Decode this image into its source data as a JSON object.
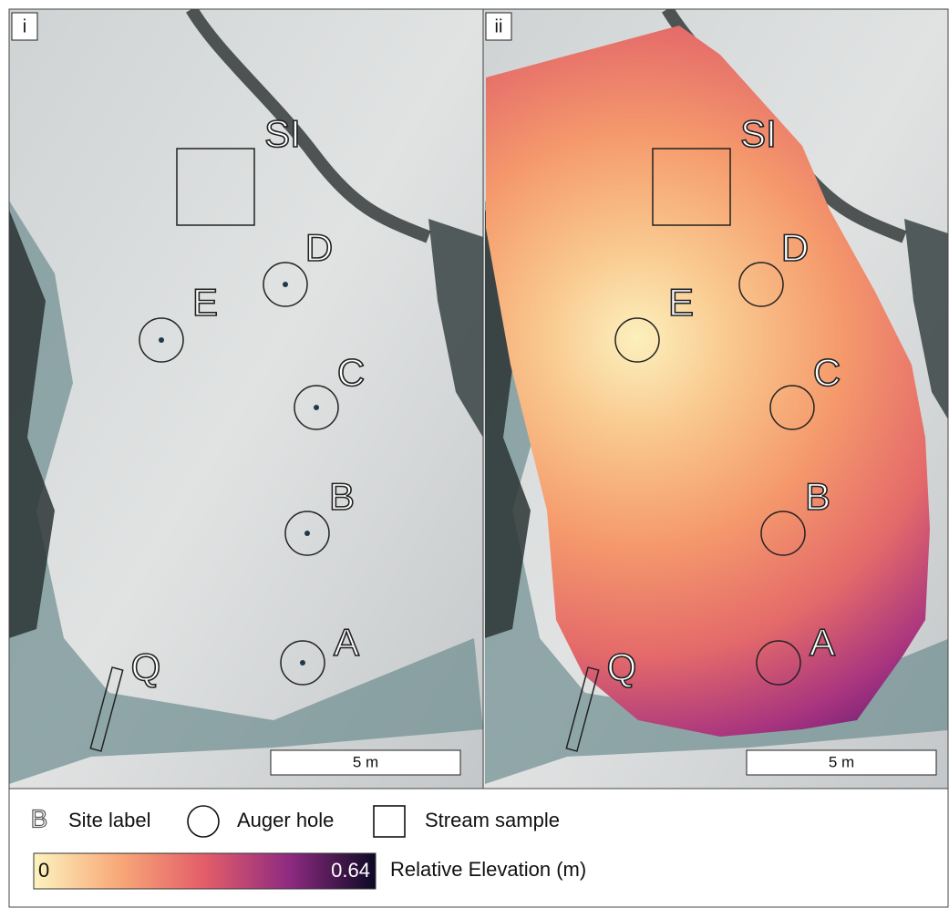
{
  "panels": [
    {
      "label": "i",
      "site_labels": [
        "SI",
        "D",
        "E",
        "C",
        "B",
        "A",
        "Q"
      ],
      "scale_bar": "5 m"
    },
    {
      "label": "ii",
      "site_labels": [
        "SI",
        "D",
        "E",
        "C",
        "B",
        "A",
        "Q"
      ],
      "scale_bar": "5 m"
    }
  ],
  "legend": {
    "symbol": "B",
    "site_label": "Site label",
    "auger_hole": "Auger hole",
    "stream_sample": "Stream sample",
    "colorbar": {
      "min": 0,
      "max": 0.64,
      "label": "Relative Elevation (m)"
    }
  }
}
